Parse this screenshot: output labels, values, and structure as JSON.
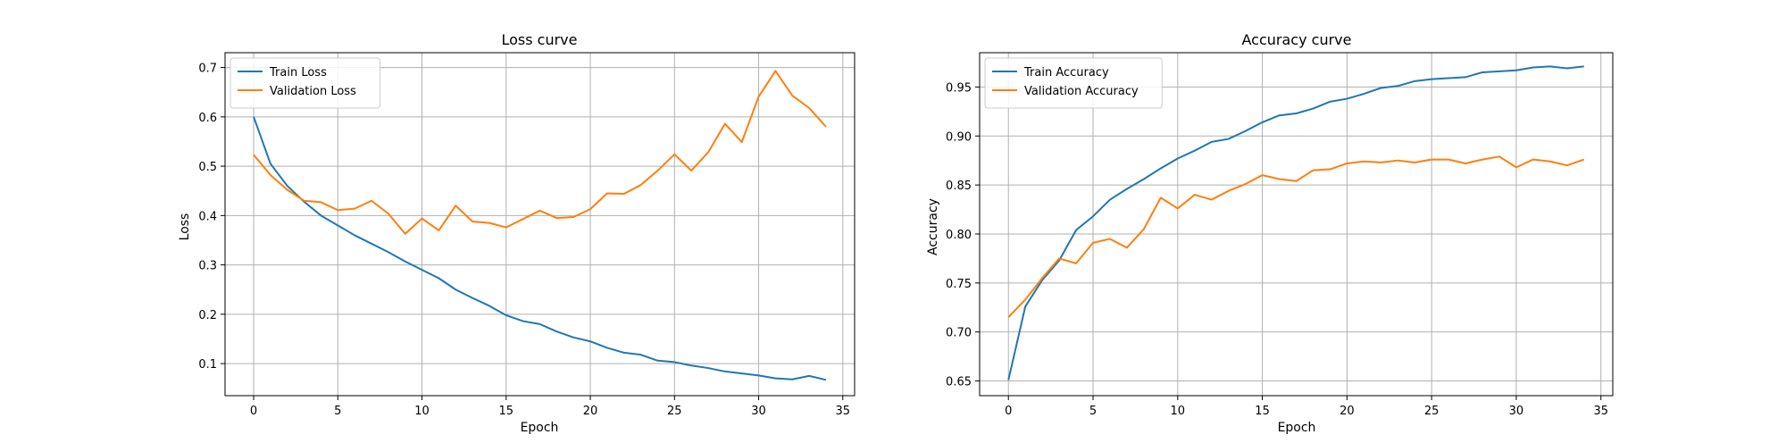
{
  "chart_data": [
    {
      "type": "line",
      "title": "Loss curve",
      "xlabel": "Epoch",
      "ylabel": "Loss",
      "xlim": [
        -1.7,
        35.7
      ],
      "ylim": [
        0.035,
        0.73
      ],
      "xticks": [
        0,
        5,
        10,
        15,
        20,
        25,
        30,
        35
      ],
      "yticks": [
        0.1,
        0.2,
        0.3,
        0.4,
        0.5,
        0.6,
        0.7
      ],
      "ytick_decimals": 1,
      "grid": true,
      "legend": "upper left",
      "x": [
        0,
        1,
        2,
        3,
        4,
        5,
        6,
        7,
        8,
        9,
        10,
        11,
        12,
        13,
        14,
        15,
        16,
        17,
        18,
        19,
        20,
        21,
        22,
        23,
        24,
        25,
        26,
        27,
        28,
        29,
        30,
        31,
        32,
        33,
        34
      ],
      "series": [
        {
          "name": "Train Loss",
          "color": "#1f77b4",
          "values": [
            0.6,
            0.505,
            0.46,
            0.428,
            0.4,
            0.38,
            0.36,
            0.343,
            0.326,
            0.307,
            0.29,
            0.273,
            0.25,
            0.233,
            0.217,
            0.198,
            0.186,
            0.18,
            0.165,
            0.153,
            0.145,
            0.132,
            0.122,
            0.118,
            0.106,
            0.103,
            0.096,
            0.091,
            0.084,
            0.08,
            0.076,
            0.07,
            0.068,
            0.075,
            0.067
          ]
        },
        {
          "name": "Validation Loss",
          "color": "#ff7f0e",
          "values": [
            0.523,
            0.482,
            0.452,
            0.43,
            0.427,
            0.411,
            0.414,
            0.43,
            0.404,
            0.363,
            0.394,
            0.37,
            0.42,
            0.388,
            0.385,
            0.376,
            0.393,
            0.41,
            0.395,
            0.397,
            0.413,
            0.445,
            0.444,
            0.462,
            0.491,
            0.524,
            0.491,
            0.528,
            0.586,
            0.549,
            0.641,
            0.693,
            0.643,
            0.618,
            0.58
          ]
        }
      ]
    },
    {
      "type": "line",
      "title": "Accuracy curve",
      "xlabel": "Epoch",
      "ylabel": "Accuracy",
      "xlim": [
        -1.7,
        35.7
      ],
      "ylim": [
        0.635,
        0.985
      ],
      "xticks": [
        0,
        5,
        10,
        15,
        20,
        25,
        30,
        35
      ],
      "yticks": [
        0.65,
        0.7,
        0.75,
        0.8,
        0.85,
        0.9,
        0.95
      ],
      "ytick_decimals": 2,
      "grid": true,
      "legend": "upper left",
      "x": [
        0,
        1,
        2,
        3,
        4,
        5,
        6,
        7,
        8,
        9,
        10,
        11,
        12,
        13,
        14,
        15,
        16,
        17,
        18,
        19,
        20,
        21,
        22,
        23,
        24,
        25,
        26,
        27,
        28,
        29,
        30,
        31,
        32,
        33,
        34
      ],
      "series": [
        {
          "name": "Train Accuracy",
          "color": "#1f77b4",
          "values": [
            0.651,
            0.726,
            0.753,
            0.773,
            0.804,
            0.818,
            0.835,
            0.846,
            0.856,
            0.867,
            0.877,
            0.885,
            0.894,
            0.897,
            0.905,
            0.914,
            0.921,
            0.923,
            0.928,
            0.935,
            0.938,
            0.943,
            0.949,
            0.951,
            0.956,
            0.958,
            0.959,
            0.96,
            0.965,
            0.966,
            0.967,
            0.97,
            0.971,
            0.969,
            0.971
          ]
        },
        {
          "name": "Validation Accuracy",
          "color": "#ff7f0e",
          "values": [
            0.715,
            0.733,
            0.755,
            0.775,
            0.77,
            0.791,
            0.795,
            0.786,
            0.805,
            0.837,
            0.826,
            0.84,
            0.835,
            0.844,
            0.851,
            0.86,
            0.856,
            0.854,
            0.865,
            0.866,
            0.872,
            0.874,
            0.873,
            0.875,
            0.873,
            0.876,
            0.876,
            0.872,
            0.876,
            0.879,
            0.868,
            0.876,
            0.874,
            0.87,
            0.876
          ]
        }
      ]
    }
  ]
}
